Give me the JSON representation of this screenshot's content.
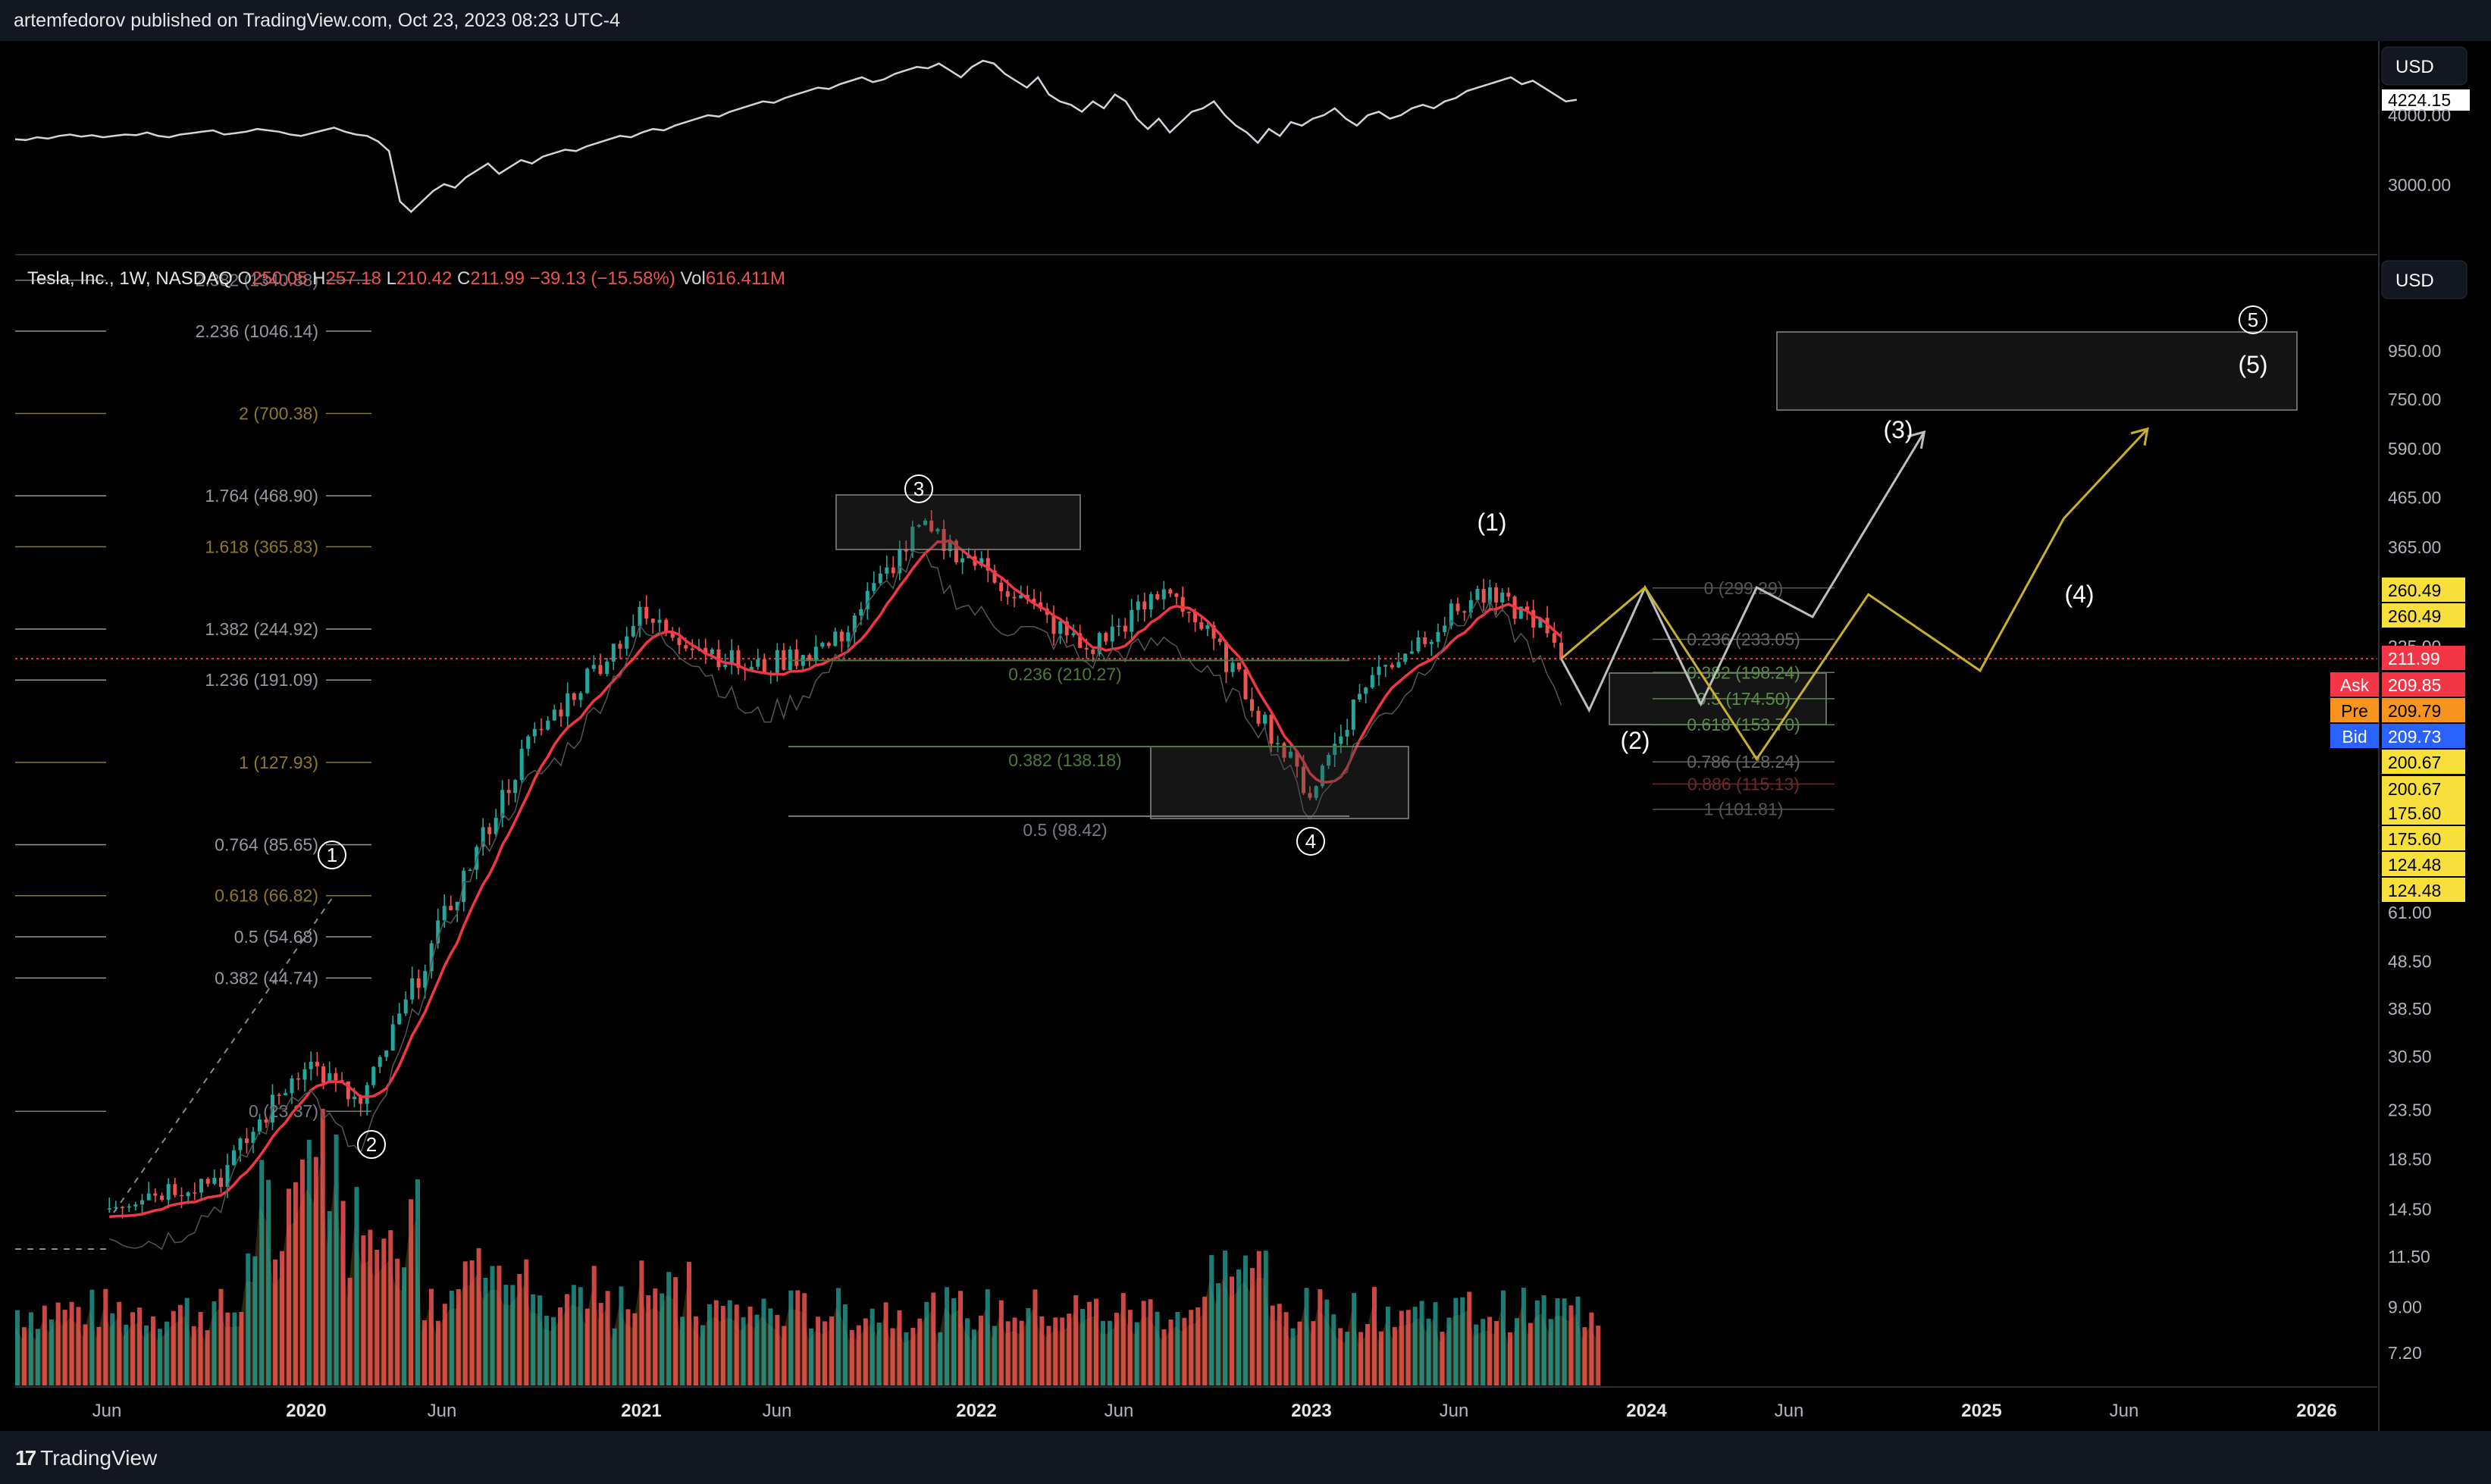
{
  "header": {
    "publisher_text": "artemfedorov published on TradingView.com, Oct 23, 2023 08:23 UTC-4"
  },
  "footer": {
    "brand": "TradingView"
  },
  "top_pane": {
    "currency": "USD",
    "last_value_label": "4224.15",
    "axis_labels": [
      "4000.00",
      "3000.00"
    ]
  },
  "main_pane": {
    "currency": "USD",
    "ticker_title": "Tesla, Inc., 1W, NASDAQ",
    "ohlc": {
      "o_label": "O",
      "o": "250.05",
      "h_label": "H",
      "h": "257.18",
      "l_label": "L",
      "l": "210.42",
      "c_label": "C",
      "c": "211.99",
      "chg": "−39.13 (−15.58%)",
      "vol_label": "Vol",
      "vol": "616.411M"
    },
    "axis_labels": [
      "950.00",
      "750.00",
      "590.00",
      "465.00",
      "365.00",
      "225.00",
      "61.00",
      "48.50",
      "38.50",
      "30.50",
      "23.50",
      "18.50",
      "14.50",
      "11.50",
      "9.00",
      "7.20"
    ],
    "price_tags": [
      {
        "text": "260.49",
        "color": "#f7e03c",
        "fg": "#000"
      },
      {
        "text": "260.49",
        "color": "#f7e03c",
        "fg": "#000"
      },
      {
        "text": "211.99",
        "color": "#f23645",
        "fg": "#fff"
      },
      {
        "text": "209.85",
        "color": "#f23645",
        "fg": "#fff",
        "tag": "Ask"
      },
      {
        "text": "209.79",
        "color": "#f7941d",
        "fg": "#000",
        "tag": "Pre"
      },
      {
        "text": "209.73",
        "color": "#2962ff",
        "fg": "#fff",
        "tag": "Bid"
      },
      {
        "text": "200.67",
        "color": "#f7e03c",
        "fg": "#000"
      },
      {
        "text": "200.67",
        "color": "#f7e03c",
        "fg": "#000"
      },
      {
        "text": "175.60",
        "color": "#f7e03c",
        "fg": "#000"
      },
      {
        "text": "175.60",
        "color": "#f7e03c",
        "fg": "#000"
      },
      {
        "text": "124.48",
        "color": "#f7e03c",
        "fg": "#000"
      },
      {
        "text": "124.48",
        "color": "#f7e03c",
        "fg": "#000"
      }
    ],
    "fib_extension": [
      {
        "text": "2.382 (1340.88)",
        "color": "#787b86"
      },
      {
        "text": "2.236 (1046.14)",
        "color": "#9598a1"
      },
      {
        "text": "2 (700.38)",
        "color": "#8a7a2a"
      },
      {
        "text": "1.764 (468.90)",
        "color": "#9598a1"
      },
      {
        "text": "1.618 (365.83)",
        "color": "#8a7a2a"
      },
      {
        "text": "1.382 (244.92)",
        "color": "#9598a1"
      },
      {
        "text": "1.236 (191.09)",
        "color": "#9598a1"
      },
      {
        "text": "1 (127.93)",
        "color": "#8a7a2a"
      },
      {
        "text": "0.764 (85.65)",
        "color": "#9598a1"
      },
      {
        "text": "0.618 (66.82)",
        "color": "#8a7a2a"
      },
      {
        "text": "0.5 (54.68)",
        "color": "#9598a1"
      },
      {
        "text": "0.382 (44.74)",
        "color": "#9598a1"
      },
      {
        "text": "0 (23.37)",
        "color": "#787b86"
      }
    ],
    "fib_retrace_2022": [
      {
        "text": "0.236 (210.27)",
        "color": "#4c7a3a"
      },
      {
        "text": "0.382 (138.18)",
        "color": "#4c7a3a"
      },
      {
        "text": "0.5 (98.42)",
        "color": "#787b86"
      }
    ],
    "fib_retrace_2024": [
      {
        "text": "0 (299.29)",
        "color": "#555"
      },
      {
        "text": "0.236 (233.05)",
        "color": "#666"
      },
      {
        "text": "0.382 (198.24)",
        "color": "#5a8a4a"
      },
      {
        "text": "0.5 (174.50)",
        "color": "#5a8a4a"
      },
      {
        "text": "0.618 (153.70)",
        "color": "#5a8a4a"
      },
      {
        "text": "0.786 (128.24)",
        "color": "#666"
      },
      {
        "text": "0.886 (115.13)",
        "color": "#6a2a2a"
      },
      {
        "text": "1 (101.81)",
        "color": "#555"
      }
    ],
    "wave_labels": {
      "w1": "1",
      "w2": "2",
      "w3": "3",
      "w4": "4",
      "w5": "5",
      "p1": "(1)",
      "p2": "(2)",
      "p3": "(3)",
      "p4": "(4)",
      "p5": "(5)"
    }
  },
  "time_axis": [
    "Jun",
    "2020",
    "Jun",
    "2021",
    "Jun",
    "2022",
    "Jun",
    "2023",
    "Jun",
    "2024",
    "Jun",
    "2025",
    "Jun",
    "2026"
  ],
  "colors": {
    "background": "#000000",
    "up": "#26a69a",
    "down": "#ef5350",
    "ma": "#f23645",
    "index_line": "#d1d4dc",
    "projection_white": "#bdbdbd",
    "projection_yellow": "#c9b02a"
  },
  "chart_data": {
    "type": "line",
    "title": "Tesla, Inc., 1W, NASDAQ",
    "log_scale": true,
    "ylim": [
      6,
      1400
    ],
    "x": [
      "2019-06",
      "2019-10",
      "2020-01",
      "2020-03",
      "2020-06",
      "2020-09",
      "2021-01",
      "2021-05",
      "2021-08",
      "2021-11",
      "2022-01",
      "2022-05",
      "2022-08",
      "2022-10",
      "2023-01",
      "2023-03",
      "2023-07",
      "2023-09",
      "2023-10"
    ],
    "series": [
      {
        "name": "Tesla, Inc.",
        "values": [
          15,
          17,
          30,
          24,
          60,
          140,
          260,
          200,
          230,
          400,
          340,
          220,
          300,
          210,
          110,
          190,
          290,
          260,
          212
        ]
      }
    ],
    "projections": [
      {
        "color": "white",
        "x": [
          "2023-10",
          "2023-11",
          "2024-01",
          "2024-03",
          "2024-05",
          "2024-07",
          "2024-11"
        ],
        "values": [
          212,
          165,
          300,
          170,
          300,
          260,
          640
        ]
      },
      {
        "color": "yellow",
        "x": [
          "2023-10",
          "2024-01",
          "2024-05",
          "2024-09",
          "2025-01",
          "2025-04",
          "2025-07"
        ],
        "values": [
          212,
          300,
          130,
          290,
          200,
          420,
          650
        ]
      }
    ],
    "volume_note": "weekly volume histogram"
  }
}
